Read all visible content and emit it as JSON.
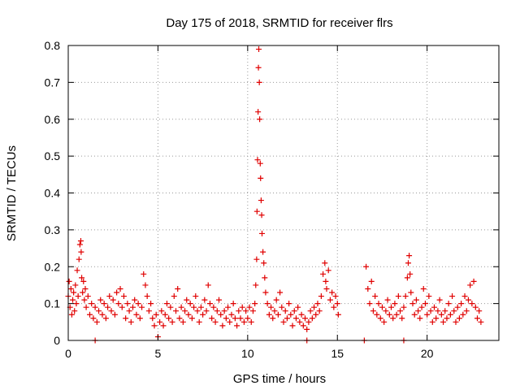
{
  "chart_data": {
    "type": "scatter",
    "title": "Day 175 of 2018, SRMTID for receiver flrs",
    "xlabel": "GPS time / hours",
    "ylabel": "SRMTID / TECUs",
    "xlim": [
      0,
      24
    ],
    "ylim": [
      0,
      0.8
    ],
    "xticks": [
      0,
      5,
      10,
      15,
      20
    ],
    "yticks": [
      0,
      0.1,
      0.2,
      0.3,
      0.4,
      0.5,
      0.6,
      0.7,
      0.8
    ],
    "xtick_labels": [
      "0",
      "5",
      "10",
      "15",
      "20"
    ],
    "ytick_labels": [
      "0",
      "0.1",
      "0.2",
      "0.3",
      "0.4",
      "0.5",
      "0.6",
      "0.7",
      "0.8"
    ],
    "grid": true,
    "marker": "plus",
    "color": "#e00000",
    "series": [
      {
        "name": "SRMTID",
        "points": [
          [
            0.0,
            0.12
          ],
          [
            0.05,
            0.16
          ],
          [
            0.1,
            0.09
          ],
          [
            0.15,
            0.14
          ],
          [
            0.2,
            0.07
          ],
          [
            0.25,
            0.11
          ],
          [
            0.3,
            0.13
          ],
          [
            0.35,
            0.08
          ],
          [
            0.4,
            0.15
          ],
          [
            0.45,
            0.1
          ],
          [
            0.5,
            0.19
          ],
          [
            0.55,
            0.12
          ],
          [
            0.6,
            0.22
          ],
          [
            0.65,
            0.26
          ],
          [
            0.7,
            0.27
          ],
          [
            0.72,
            0.24
          ],
          [
            0.75,
            0.17
          ],
          [
            0.8,
            0.13
          ],
          [
            0.85,
            0.16
          ],
          [
            0.9,
            0.11
          ],
          [
            0.95,
            0.14
          ],
          [
            1.0,
            0.09
          ],
          [
            1.1,
            0.12
          ],
          [
            1.2,
            0.07
          ],
          [
            1.3,
            0.1
          ],
          [
            1.4,
            0.06
          ],
          [
            1.5,
            0.09
          ],
          [
            1.6,
            0.05
          ],
          [
            1.7,
            0.08
          ],
          [
            1.8,
            0.11
          ],
          [
            1.9,
            0.07
          ],
          [
            2.0,
            0.1
          ],
          [
            2.1,
            0.06
          ],
          [
            2.2,
            0.09
          ],
          [
            2.3,
            0.12
          ],
          [
            2.4,
            0.08
          ],
          [
            2.5,
            0.11
          ],
          [
            2.6,
            0.07
          ],
          [
            2.7,
            0.13
          ],
          [
            2.8,
            0.1
          ],
          [
            2.9,
            0.14
          ],
          [
            3.0,
            0.09
          ],
          [
            3.1,
            0.12
          ],
          [
            3.2,
            0.06
          ],
          [
            3.3,
            0.1
          ],
          [
            3.4,
            0.08
          ],
          [
            3.5,
            0.05
          ],
          [
            3.6,
            0.09
          ],
          [
            3.7,
            0.11
          ],
          [
            3.8,
            0.07
          ],
          [
            3.9,
            0.1
          ],
          [
            4.0,
            0.06
          ],
          [
            4.1,
            0.09
          ],
          [
            4.2,
            0.18
          ],
          [
            4.3,
            0.15
          ],
          [
            4.4,
            0.12
          ],
          [
            4.5,
            0.08
          ],
          [
            4.6,
            0.1
          ],
          [
            4.7,
            0.06
          ],
          [
            4.8,
            0.04
          ],
          [
            4.9,
            0.07
          ],
          [
            5.0,
            0.01
          ],
          [
            5.1,
            0.05
          ],
          [
            5.2,
            0.08
          ],
          [
            5.3,
            0.04
          ],
          [
            5.4,
            0.07
          ],
          [
            5.5,
            0.1
          ],
          [
            5.6,
            0.06
          ],
          [
            5.7,
            0.09
          ],
          [
            5.8,
            0.05
          ],
          [
            5.9,
            0.12
          ],
          [
            6.0,
            0.08
          ],
          [
            6.1,
            0.14
          ],
          [
            6.2,
            0.06
          ],
          [
            6.3,
            0.09
          ],
          [
            6.4,
            0.05
          ],
          [
            6.5,
            0.08
          ],
          [
            6.6,
            0.11
          ],
          [
            6.7,
            0.07
          ],
          [
            6.8,
            0.1
          ],
          [
            6.9,
            0.06
          ],
          [
            7.0,
            0.09
          ],
          [
            7.1,
            0.12
          ],
          [
            7.2,
            0.08
          ],
          [
            7.3,
            0.05
          ],
          [
            7.4,
            0.09
          ],
          [
            7.5,
            0.07
          ],
          [
            7.6,
            0.11
          ],
          [
            7.7,
            0.08
          ],
          [
            7.8,
            0.15
          ],
          [
            7.9,
            0.1
          ],
          [
            8.0,
            0.06
          ],
          [
            8.1,
            0.09
          ],
          [
            8.2,
            0.05
          ],
          [
            8.3,
            0.08
          ],
          [
            8.4,
            0.11
          ],
          [
            8.5,
            0.07
          ],
          [
            8.6,
            0.04
          ],
          [
            8.7,
            0.08
          ],
          [
            8.8,
            0.06
          ],
          [
            8.9,
            0.09
          ],
          [
            9.0,
            0.05
          ],
          [
            9.1,
            0.07
          ],
          [
            9.2,
            0.1
          ],
          [
            9.3,
            0.06
          ],
          [
            9.4,
            0.04
          ],
          [
            9.5,
            0.08
          ],
          [
            9.6,
            0.06
          ],
          [
            9.7,
            0.09
          ],
          [
            9.8,
            0.05
          ],
          [
            9.9,
            0.08
          ],
          [
            10.0,
            0.06
          ],
          [
            10.1,
            0.09
          ],
          [
            10.2,
            0.05
          ],
          [
            10.3,
            0.08
          ],
          [
            10.4,
            0.1
          ],
          [
            10.45,
            0.15
          ],
          [
            10.5,
            0.22
          ],
          [
            10.52,
            0.35
          ],
          [
            10.55,
            0.49
          ],
          [
            10.58,
            0.62
          ],
          [
            10.6,
            0.74
          ],
          [
            10.62,
            0.79
          ],
          [
            10.65,
            0.7
          ],
          [
            10.67,
            0.6
          ],
          [
            10.7,
            0.48
          ],
          [
            10.72,
            0.44
          ],
          [
            10.75,
            0.38
          ],
          [
            10.78,
            0.34
          ],
          [
            10.8,
            0.29
          ],
          [
            10.85,
            0.24
          ],
          [
            10.9,
            0.21
          ],
          [
            10.95,
            0.17
          ],
          [
            11.0,
            0.13
          ],
          [
            11.1,
            0.1
          ],
          [
            11.2,
            0.07
          ],
          [
            11.3,
            0.09
          ],
          [
            11.4,
            0.06
          ],
          [
            11.5,
            0.08
          ],
          [
            11.6,
            0.11
          ],
          [
            11.7,
            0.07
          ],
          [
            11.8,
            0.13
          ],
          [
            11.9,
            0.09
          ],
          [
            12.0,
            0.05
          ],
          [
            12.1,
            0.08
          ],
          [
            12.2,
            0.06
          ],
          [
            12.3,
            0.1
          ],
          [
            12.4,
            0.07
          ],
          [
            12.5,
            0.04
          ],
          [
            12.6,
            0.08
          ],
          [
            12.7,
            0.06
          ],
          [
            12.8,
            0.09
          ],
          [
            12.9,
            0.05
          ],
          [
            13.0,
            0.07
          ],
          [
            13.1,
            0.04
          ],
          [
            13.2,
            0.06
          ],
          [
            13.3,
            0.03
          ],
          [
            13.4,
            0.05
          ],
          [
            13.5,
            0.08
          ],
          [
            13.6,
            0.06
          ],
          [
            13.7,
            0.09
          ],
          [
            13.8,
            0.07
          ],
          [
            13.9,
            0.1
          ],
          [
            14.0,
            0.08
          ],
          [
            14.1,
            0.12
          ],
          [
            14.2,
            0.18
          ],
          [
            14.3,
            0.21
          ],
          [
            14.35,
            0.16
          ],
          [
            14.4,
            0.14
          ],
          [
            14.5,
            0.19
          ],
          [
            14.6,
            0.11
          ],
          [
            14.7,
            0.13
          ],
          [
            14.8,
            0.09
          ],
          [
            14.9,
            0.12
          ],
          [
            15.0,
            0.1
          ],
          [
            15.05,
            0.07
          ],
          [
            16.6,
            0.2
          ],
          [
            16.7,
            0.14
          ],
          [
            16.8,
            0.1
          ],
          [
            16.9,
            0.16
          ],
          [
            17.0,
            0.08
          ],
          [
            17.1,
            0.12
          ],
          [
            17.2,
            0.07
          ],
          [
            17.3,
            0.1
          ],
          [
            17.4,
            0.06
          ],
          [
            17.5,
            0.09
          ],
          [
            17.6,
            0.05
          ],
          [
            17.7,
            0.08
          ],
          [
            17.8,
            0.11
          ],
          [
            17.9,
            0.07
          ],
          [
            18.0,
            0.09
          ],
          [
            18.1,
            0.06
          ],
          [
            18.2,
            0.1
          ],
          [
            18.3,
            0.07
          ],
          [
            18.4,
            0.12
          ],
          [
            18.5,
            0.08
          ],
          [
            18.6,
            0.06
          ],
          [
            18.7,
            0.09
          ],
          [
            18.8,
            0.12
          ],
          [
            18.9,
            0.17
          ],
          [
            18.95,
            0.21
          ],
          [
            19.0,
            0.23
          ],
          [
            19.05,
            0.18
          ],
          [
            19.1,
            0.13
          ],
          [
            19.2,
            0.1
          ],
          [
            19.3,
            0.07
          ],
          [
            19.4,
            0.11
          ],
          [
            19.5,
            0.08
          ],
          [
            19.6,
            0.06
          ],
          [
            19.7,
            0.09
          ],
          [
            19.8,
            0.14
          ],
          [
            19.9,
            0.1
          ],
          [
            20.0,
            0.07
          ],
          [
            20.1,
            0.12
          ],
          [
            20.2,
            0.08
          ],
          [
            20.3,
            0.05
          ],
          [
            20.4,
            0.09
          ],
          [
            20.5,
            0.06
          ],
          [
            20.6,
            0.08
          ],
          [
            20.7,
            0.11
          ],
          [
            20.8,
            0.07
          ],
          [
            20.9,
            0.05
          ],
          [
            21.0,
            0.08
          ],
          [
            21.1,
            0.06
          ],
          [
            21.2,
            0.1
          ],
          [
            21.3,
            0.07
          ],
          [
            21.4,
            0.12
          ],
          [
            21.5,
            0.08
          ],
          [
            21.6,
            0.05
          ],
          [
            21.7,
            0.09
          ],
          [
            21.8,
            0.06
          ],
          [
            21.9,
            0.1
          ],
          [
            22.0,
            0.07
          ],
          [
            22.1,
            0.12
          ],
          [
            22.2,
            0.08
          ],
          [
            22.3,
            0.11
          ],
          [
            22.4,
            0.15
          ],
          [
            22.5,
            0.1
          ],
          [
            22.6,
            0.16
          ],
          [
            22.7,
            0.09
          ],
          [
            22.8,
            0.06
          ],
          [
            22.9,
            0.08
          ],
          [
            23.0,
            0.05
          ],
          [
            1.5,
            0.0
          ],
          [
            13.3,
            0.0
          ],
          [
            16.5,
            0.0
          ],
          [
            18.7,
            0.0
          ]
        ]
      }
    ]
  }
}
